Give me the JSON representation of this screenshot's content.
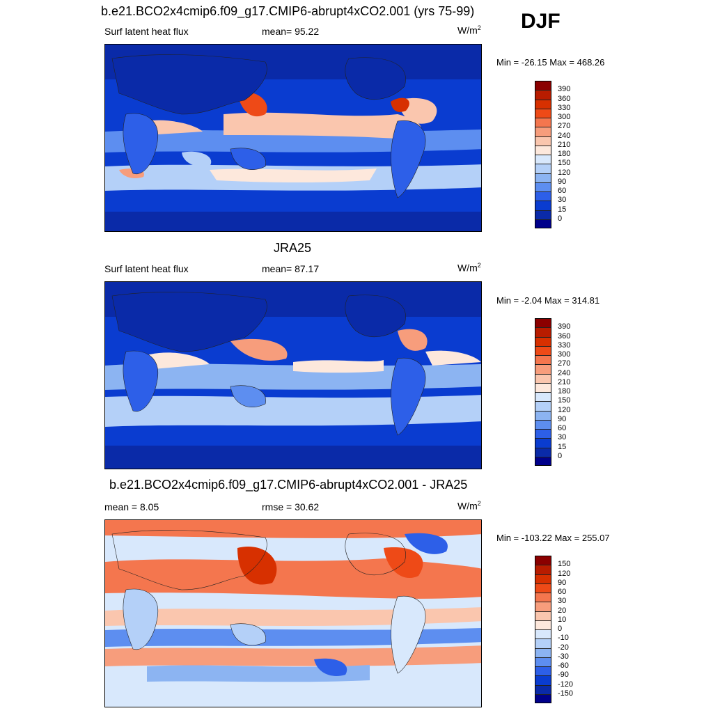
{
  "season": "DJF",
  "panels": [
    {
      "title": "b.e21.BCO2x4cmip6.f09_g17.CMIP6-abrupt4xCO2.001 (yrs 75-99)",
      "left_label": "Surf latent heat flux",
      "center_label": "mean=  95.22",
      "units": "W/m",
      "units_sup": "2",
      "minmax": "Min = -26.15 Max = 468.26",
      "levels": [
        "390",
        "360",
        "330",
        "300",
        "270",
        "240",
        "210",
        "180",
        "150",
        "120",
        "90",
        "60",
        "30",
        "15",
        "0"
      ]
    },
    {
      "title": "JRA25",
      "left_label": "Surf latent heat flux",
      "center_label": "mean=  87.17",
      "units": "W/m",
      "units_sup": "2",
      "minmax": "Min =  -2.04 Max = 314.81",
      "levels": [
        "390",
        "360",
        "330",
        "300",
        "270",
        "240",
        "210",
        "180",
        "150",
        "120",
        "90",
        "60",
        "30",
        "15",
        "0"
      ]
    },
    {
      "title": "b.e21.BCO2x4cmip6.f09_g17.CMIP6-abrupt4xCO2.001 - JRA25",
      "left_label": "mean =   8.05",
      "center_label": "rmse =  30.62",
      "units": "W/m",
      "units_sup": "2",
      "minmax": "Min = -103.22 Max = 255.07",
      "levels": [
        "150",
        "120",
        "90",
        "60",
        "30",
        "20",
        "10",
        "0",
        "-10",
        "-20",
        "-30",
        "-60",
        "-90",
        "-120",
        "-150"
      ]
    }
  ],
  "colors": {
    "scale": [
      "#8b0000",
      "#b81c00",
      "#d73000",
      "#ee4a17",
      "#f4764e",
      "#f79d7c",
      "#fac6ae",
      "#fde8dc",
      "#d8e8fc",
      "#b4d0f8",
      "#8cb4f2",
      "#5d8ef0",
      "#2d5fe8",
      "#0a3cd0",
      "#0a2aa8",
      "#00008a"
    ]
  }
}
